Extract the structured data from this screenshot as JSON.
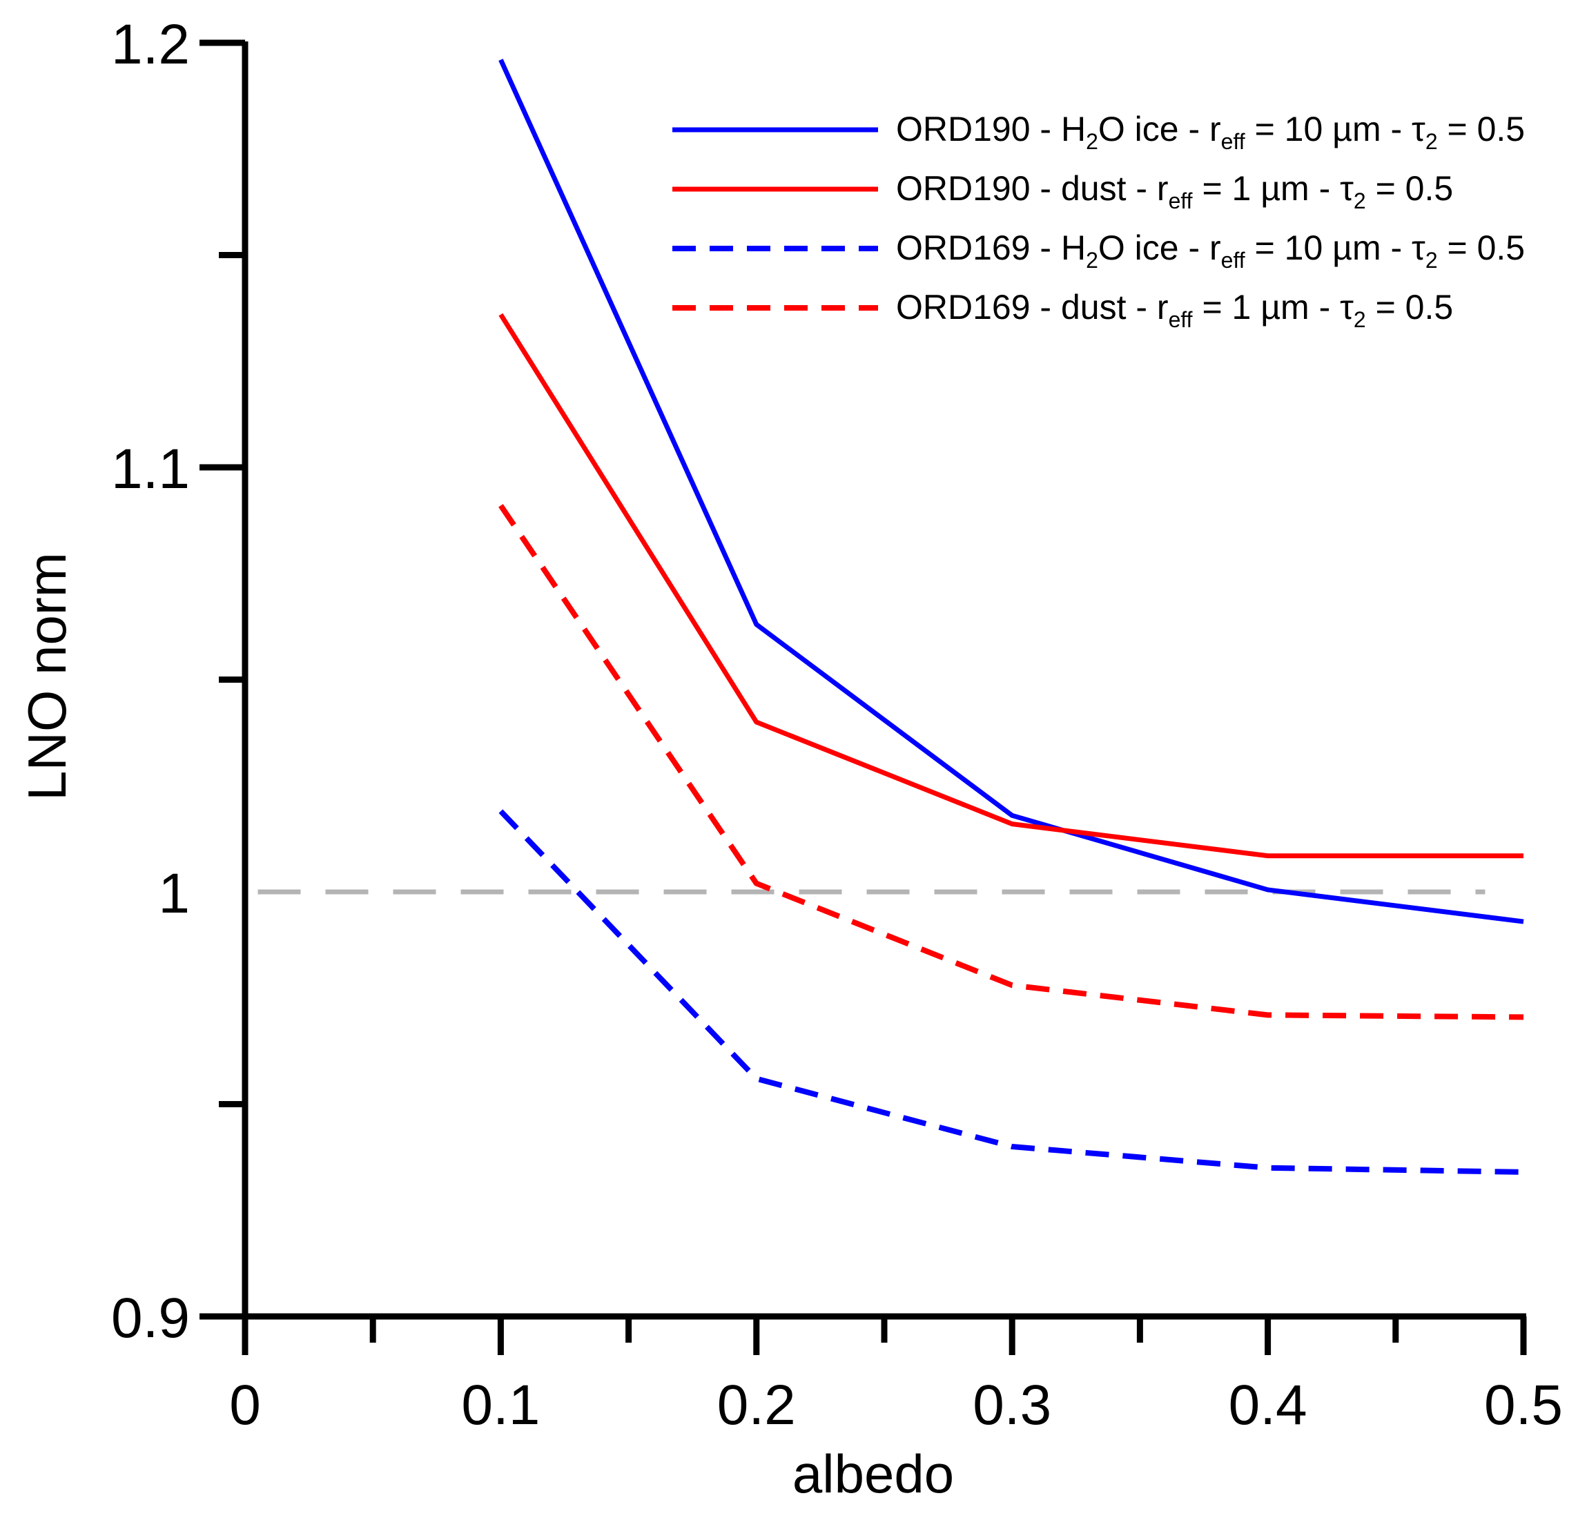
{
  "chart_data": {
    "type": "line",
    "title": "",
    "xlabel": "albedo",
    "ylabel": "LNO norm",
    "xlim": [
      0,
      0.5
    ],
    "ylim": [
      0.9,
      1.2
    ],
    "x_ticks": [
      0,
      0.1,
      0.2,
      0.3,
      0.4,
      0.5
    ],
    "x_tick_labels": [
      "0",
      "0.1",
      "0.2",
      "0.3",
      "0.4",
      "0.5"
    ],
    "x_minor_ticks": [
      0.05,
      0.15,
      0.25,
      0.35,
      0.45
    ],
    "y_ticks": [
      0.9,
      1.1,
      1.2
    ],
    "y_tick_labels": [
      "0.9",
      "1",
      "1.1",
      "1.2"
    ],
    "y_tick_values": [
      0.9,
      1.0,
      1.1,
      1.2
    ],
    "y_minor_ticks": [
      0.95,
      1.05,
      1.15
    ],
    "reference_line": {
      "y": 1.0,
      "color": "#b4b4b4",
      "style": "dashed"
    },
    "legend_position": "top-right",
    "series": [
      {
        "name": "ORD190 - H2O ice - reff = 10 µm - τ2 = 0.5",
        "color": "#0000ff",
        "style": "solid",
        "x": [
          0.1,
          0.2,
          0.3,
          0.4,
          0.5
        ],
        "y": [
          1.196,
          1.063,
          1.018,
          1.0005,
          0.993
        ],
        "label_parts": {
          "a": "ORD190 - H",
          "a_sub": "2",
          "b": "O ice - r",
          "b_sub": "eff",
          "c": " = 10 µm - τ",
          "c_sub": "2",
          "d": " = 0.5"
        }
      },
      {
        "name": "ORD190 - dust - reff = 1 µm - τ2 = 0.5",
        "color": "#ff0000",
        "style": "solid",
        "x": [
          0.1,
          0.2,
          0.3,
          0.4,
          0.5
        ],
        "y": [
          1.136,
          1.04,
          1.016,
          1.0085,
          1.0085
        ],
        "label_parts": {
          "a": "ORD190 - dust - r",
          "a_sub": "eff",
          "b": " = 1 µm - τ",
          "b_sub": "2",
          "c": " = 0.5"
        }
      },
      {
        "name": "ORD169 - H2O ice - reff = 10 µm - τ2 = 0.5",
        "color": "#0000ff",
        "style": "dashed",
        "x": [
          0.1,
          0.2,
          0.3,
          0.4,
          0.5
        ],
        "y": [
          1.019,
          0.956,
          0.94,
          0.935,
          0.934
        ],
        "label_parts": {
          "a": "ORD169 - H",
          "a_sub": "2",
          "b": "O ice - r",
          "b_sub": "eff",
          "c": " = 10 µm - τ",
          "c_sub": "2",
          "d": " = 0.5"
        }
      },
      {
        "name": "ORD169 - dust - reff = 1 µm - τ2 = 0.5",
        "color": "#ff0000",
        "style": "dashed",
        "x": [
          0.1,
          0.2,
          0.3,
          0.4,
          0.5
        ],
        "y": [
          1.091,
          1.002,
          0.978,
          0.971,
          0.9705
        ],
        "label_parts": {
          "a": "ORD169 - dust - r",
          "a_sub": "eff",
          "b": " = 1 µm - τ",
          "b_sub": "2",
          "c": " = 0.5"
        }
      }
    ]
  }
}
